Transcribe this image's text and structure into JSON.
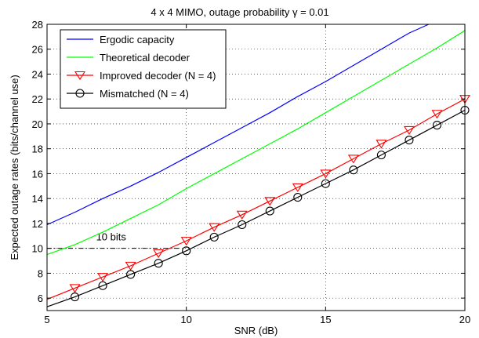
{
  "chart_data": {
    "type": "line",
    "title": "4 x 4 MIMO, outage probability γ = 0.01",
    "xlabel": "SNR (dB)",
    "ylabel": "Expected outage rates (bits/channel use)",
    "xlim": [
      5,
      20
    ],
    "ylim": [
      5,
      28
    ],
    "xticks": [
      5,
      10,
      15,
      20
    ],
    "yticks": [
      6,
      8,
      10,
      12,
      14,
      16,
      18,
      20,
      22,
      24,
      26,
      28
    ],
    "grid": true,
    "legend_position": "top-left",
    "series": [
      {
        "name": "Ergodic capacity",
        "color": "#0000ff",
        "marker": "none",
        "x": [
          5,
          6,
          7,
          8,
          9,
          10,
          11,
          12,
          13,
          14,
          15,
          16,
          17,
          18,
          18.7
        ],
        "y": [
          11.9,
          12.9,
          14.0,
          15.0,
          16.1,
          17.3,
          18.5,
          19.7,
          20.9,
          22.2,
          23.4,
          24.7,
          26.0,
          27.3,
          28.0
        ]
      },
      {
        "name": "Theoretical decoder",
        "color": "#00ff00",
        "marker": "none",
        "x": [
          5,
          6,
          7,
          8,
          9,
          10,
          11,
          12,
          13,
          14,
          15,
          16,
          17,
          18,
          19,
          20
        ],
        "y": [
          9.5,
          10.3,
          11.3,
          12.4,
          13.5,
          14.8,
          16.0,
          17.2,
          18.4,
          19.6,
          20.9,
          22.2,
          23.5,
          24.8,
          26.1,
          27.5
        ]
      },
      {
        "name": "Improved decoder (N = 4)",
        "color": "#ff0000",
        "marker": "triangle-down",
        "x": [
          5,
          6,
          7,
          8,
          9,
          10,
          11,
          12,
          13,
          14,
          15,
          16,
          17,
          18,
          19,
          20
        ],
        "y": [
          5.9,
          6.8,
          7.7,
          8.6,
          9.6,
          10.6,
          11.7,
          12.7,
          13.8,
          14.9,
          16.0,
          17.2,
          18.4,
          19.5,
          20.8,
          22.0
        ],
        "marker_x": [
          6,
          7,
          8,
          9,
          10,
          11,
          12,
          13,
          14,
          15,
          16,
          17,
          18,
          19,
          20
        ]
      },
      {
        "name": "Mismatched  (N = 4)",
        "color": "#000000",
        "marker": "circle",
        "x": [
          5,
          6,
          7,
          8,
          9,
          10,
          11,
          12,
          13,
          14,
          15,
          16,
          17,
          18,
          19,
          20
        ],
        "y": [
          5.3,
          6.1,
          7.0,
          7.9,
          8.8,
          9.8,
          10.9,
          11.9,
          13.0,
          14.1,
          15.2,
          16.3,
          17.5,
          18.7,
          19.9,
          21.1
        ],
        "marker_x": [
          6,
          7,
          8,
          9,
          10,
          11,
          12,
          13,
          14,
          15,
          16,
          17,
          18,
          19,
          20
        ]
      }
    ],
    "annotations": [
      {
        "text": "10 bits",
        "x": 7.3,
        "y": 10.5
      }
    ],
    "reference_line": {
      "y": 10,
      "x_from": 5,
      "x_to": 9.8,
      "style": "dash-dot"
    }
  }
}
